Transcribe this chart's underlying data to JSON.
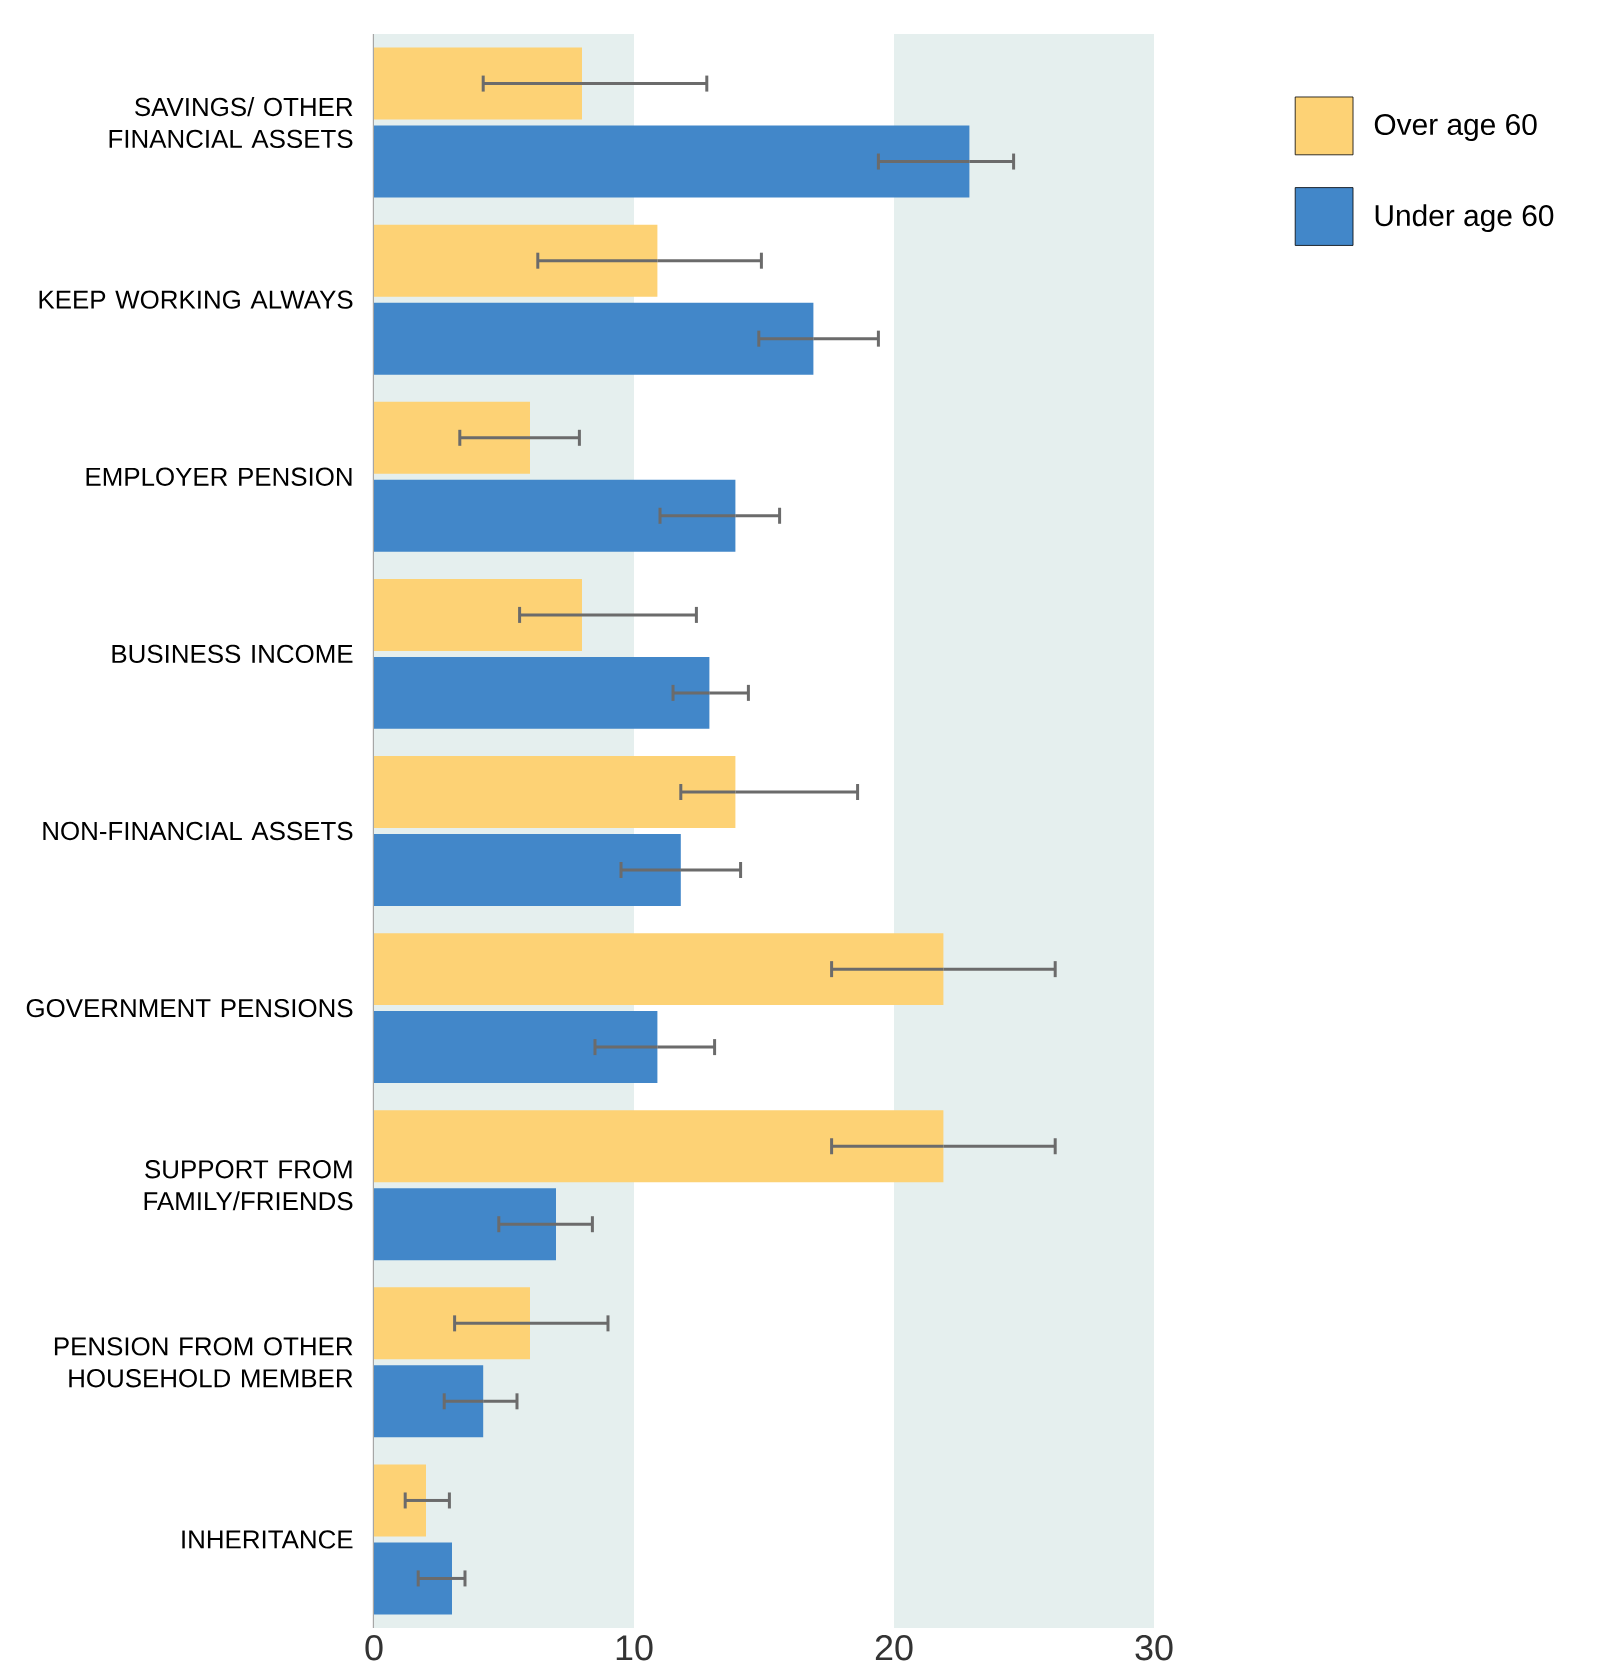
{
  "chart_data": {
    "type": "bar",
    "orientation": "horizontal",
    "categories": [
      "SAVINGS/ OTHER FINANCIAL ASSETS",
      "KEEP WORKING ALWAYS",
      "EMPLOYER PENSION",
      "BUSINESS INCOME",
      "NON-FINANCIAL ASSETS",
      "GOVERNMENT PENSIONS",
      "SUPPORT FROM FAMILY/FRIENDS",
      "PENSION FROM OTHER HOUSEHOLD MEMBER",
      "INHERITANCE"
    ],
    "series": [
      {
        "name": "Over age 60",
        "color": "#fdd275",
        "values": [
          8.0,
          10.9,
          6.0,
          8.0,
          13.9,
          21.9,
          21.9,
          6.0,
          2.0
        ],
        "errors": [
          [
            4.2,
            12.8
          ],
          [
            6.3,
            14.9
          ],
          [
            3.3,
            7.9
          ],
          [
            5.6,
            12.4
          ],
          [
            11.8,
            18.6
          ],
          [
            17.6,
            26.2
          ],
          [
            17.6,
            26.2
          ],
          [
            3.1,
            9.0
          ],
          [
            1.2,
            2.9
          ]
        ]
      },
      {
        "name": "Under age 60",
        "color": "#4287c9",
        "values": [
          22.9,
          16.9,
          13.9,
          12.9,
          11.8,
          10.9,
          7.0,
          4.2,
          3.0
        ],
        "errors": [
          [
            19.4,
            24.6
          ],
          [
            14.8,
            19.4
          ],
          [
            11.0,
            15.6
          ],
          [
            11.5,
            14.4
          ],
          [
            9.5,
            14.1
          ],
          [
            8.5,
            13.1
          ],
          [
            4.8,
            8.4
          ],
          [
            2.7,
            5.5
          ],
          [
            1.7,
            3.5
          ]
        ]
      }
    ],
    "xlim": [
      0,
      30
    ],
    "xticks": [
      0,
      10,
      20,
      30
    ],
    "bands": [
      {
        "axis": "x",
        "from": 0,
        "to": 10,
        "color": "#e5efee"
      },
      {
        "axis": "x",
        "from": 20,
        "to": 30,
        "color": "#e5efee"
      }
    ],
    "legend": "top right"
  }
}
